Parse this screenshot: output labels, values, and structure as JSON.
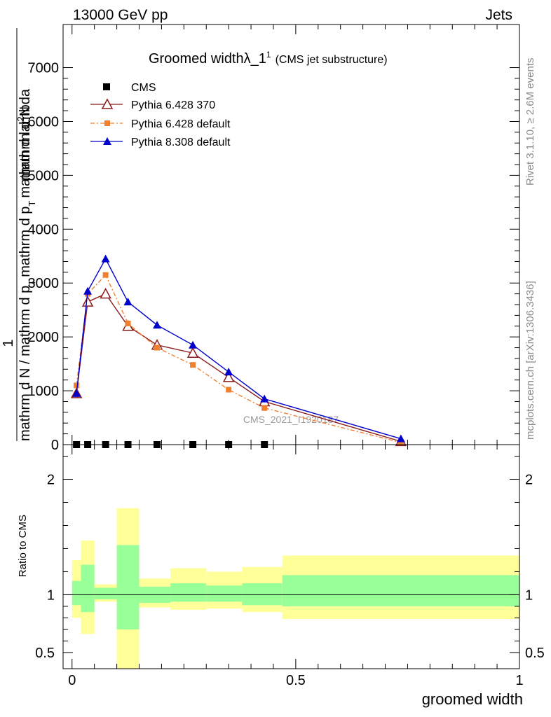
{
  "header": {
    "energy": "13000 GeV pp",
    "category": "Jets"
  },
  "side": {
    "rivet": "Rivet 3.1.10, ≥ 2.6M events",
    "mcplots": "mcplots.cern.ch [arXiv:1306.3436]"
  },
  "watermark": "CMS_2021_I1920187",
  "colors": {
    "cms": "#000000",
    "py6_370": "#8b1a1a",
    "py6_default": "#f08030",
    "py8": "#0000cc",
    "band_inner": "#99ff99",
    "band_outer": "#ffff99"
  },
  "chart_data": [
    {
      "type": "line",
      "title": "Groomed width",
      "title_symbol": "λ_1",
      "title_sup": "1",
      "title_sub": "(CMS jet substructure)",
      "ylabel_top": "1",
      "ylabel_parts": [
        "mathrm d N / mathrm d p",
        "T",
        "mathrm d p",
        "T",
        "mathrm d lambda",
        "mathrm d",
        "2",
        "N"
      ],
      "ylim": [
        0,
        7800
      ],
      "yticks": [
        0,
        1000,
        2000,
        3000,
        4000,
        5000,
        6000,
        7000
      ],
      "ytick_labels": [
        "0",
        "1000",
        "2000",
        "3000",
        "4000",
        "5000",
        "6000",
        "7000"
      ],
      "xlim": [
        -0.02,
        1.0
      ],
      "legend": [
        "CMS",
        "Pythia 6.428 370",
        "Pythia 6.428 default",
        "Pythia 8.308 default"
      ],
      "series": [
        {
          "name": "CMS",
          "x": [
            0.01,
            0.035,
            0.075,
            0.125,
            0.19,
            0.27,
            0.35,
            0.43
          ],
          "values": [
            0,
            0,
            0,
            0,
            0,
            0,
            0,
            0
          ]
        },
        {
          "name": "Pythia 6.428 370",
          "x": [
            0.01,
            0.035,
            0.075,
            0.125,
            0.19,
            0.27,
            0.35,
            0.43,
            0.735
          ],
          "values": [
            950,
            2650,
            2800,
            2200,
            1850,
            1700,
            1250,
            800,
            60
          ]
        },
        {
          "name": "Pythia 6.428 default",
          "x": [
            0.01,
            0.035,
            0.075,
            0.125,
            0.19,
            0.27,
            0.35,
            0.43,
            0.735
          ],
          "values": [
            1100,
            2800,
            3150,
            2250,
            1800,
            1480,
            1020,
            680,
            40
          ]
        },
        {
          "name": "Pythia 8.308 default",
          "x": [
            0.01,
            0.035,
            0.075,
            0.125,
            0.19,
            0.27,
            0.35,
            0.43,
            0.735
          ],
          "values": [
            950,
            2850,
            3450,
            2650,
            2220,
            1850,
            1350,
            850,
            110
          ]
        }
      ]
    },
    {
      "type": "area",
      "ylabel": "Ratio to CMS",
      "xlabel": "groomed width",
      "ylim": [
        0.36,
        2.3
      ],
      "yticks": [
        0.5,
        1,
        2
      ],
      "ytick_labels": [
        "0.5",
        "1",
        "2"
      ],
      "xticks": [
        0,
        0.5,
        1
      ],
      "xtick_labels": [
        "0",
        "0.5",
        "1"
      ],
      "bins": [
        {
          "lo": 0.0,
          "hi": 0.02,
          "inner": [
            0.91,
            1.12
          ],
          "outer": [
            0.8,
            1.3
          ]
        },
        {
          "lo": 0.02,
          "hi": 0.05,
          "inner": [
            0.85,
            1.26
          ],
          "outer": [
            0.66,
            1.47
          ]
        },
        {
          "lo": 0.05,
          "hi": 0.1,
          "inner": [
            0.96,
            1.06
          ],
          "outer": [
            0.94,
            1.09
          ]
        },
        {
          "lo": 0.1,
          "hi": 0.15,
          "inner": [
            0.7,
            1.43
          ],
          "outer": [
            0.31,
            1.75
          ]
        },
        {
          "lo": 0.15,
          "hi": 0.22,
          "inner": [
            0.93,
            1.07
          ],
          "outer": [
            0.89,
            1.14
          ]
        },
        {
          "lo": 0.22,
          "hi": 0.3,
          "inner": [
            0.94,
            1.1
          ],
          "outer": [
            0.87,
            1.23
          ]
        },
        {
          "lo": 0.3,
          "hi": 0.38,
          "inner": [
            0.94,
            1.08
          ],
          "outer": [
            0.88,
            1.2
          ]
        },
        {
          "lo": 0.38,
          "hi": 0.47,
          "inner": [
            0.91,
            1.1
          ],
          "outer": [
            0.85,
            1.24
          ]
        },
        {
          "lo": 0.47,
          "hi": 1.0,
          "inner": [
            0.9,
            1.17
          ],
          "outer": [
            0.79,
            1.34
          ]
        }
      ]
    }
  ]
}
